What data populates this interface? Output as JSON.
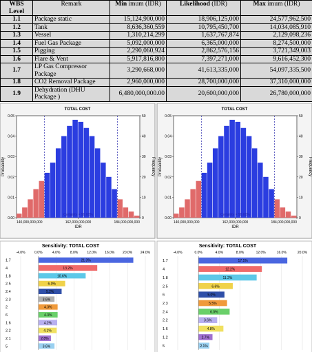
{
  "table": {
    "header": [
      {
        "bold": "WBS Level",
        "text": ""
      },
      {
        "bold": "",
        "text": "Remark"
      },
      {
        "bold": "Min",
        "text": "imum (IDR)"
      },
      {
        "bold": "Likelihood",
        "text": "(IDR)"
      },
      {
        "bold": "Max",
        "text": "imum (IDR)"
      }
    ],
    "rows": [
      [
        "1.1",
        "Package static",
        "15,124,900,000",
        "18,906,125,000",
        "24,577,962,500"
      ],
      [
        "1.2",
        "Tank",
        "8,636,360,559",
        "10,795,450,700",
        "14,034,085,910"
      ],
      [
        "1.3",
        "Vessel",
        "1,310,214,299",
        "1,637,767,874",
        "2,129,098,236"
      ],
      [
        "1.4",
        "Fuel Gas Package",
        "5,092,000,000",
        "6,365,000,000",
        "8,274,500,000"
      ],
      [
        "1.5",
        "Pigging",
        "2,290,060,924",
        "2,862,576,156",
        "3,721,349,003"
      ],
      [
        "1.6",
        "Flare & Vent",
        "5,917,816,800",
        "7,397,271,000",
        "9,616,452,300"
      ],
      [
        "1.7",
        "LP Gas Compressor Package",
        "3,290,668,000",
        "41,613,335,000",
        "54,097,335,500"
      ],
      [
        "1.8",
        "CO2 Removal Package",
        "2,960,000,000",
        "28,700,000,000",
        "37,310,000,000"
      ],
      [
        "1.9",
        "Dehydration (DHU Package )",
        "6,480,000,000.00",
        "20,600,000,000",
        "26,780,000,000"
      ]
    ]
  },
  "chart_data": [
    {
      "type": "histogram",
      "title": "TOTAL COST",
      "x_label": "IDR",
      "y_label": "Probability",
      "y2_label": "Frequency",
      "bins": [
        140000000000,
        142000000000,
        144000000000,
        146000000000,
        148000000000,
        150000000000,
        152000000000,
        154000000000,
        156000000000,
        158000000000,
        160000000000,
        162000000000,
        164000000000,
        166000000000,
        168000000000,
        170000000000,
        172000000000,
        174000000000,
        176000000000,
        178000000000,
        180000000000,
        182000000000,
        184000000000
      ],
      "values": [
        2,
        5,
        9,
        14,
        18,
        22,
        27,
        34,
        40,
        45,
        48,
        47,
        44,
        40,
        34,
        27,
        20,
        14,
        9,
        5,
        3,
        1
      ],
      "axis": "y2",
      "color": "#2b3de0",
      "tail_color": "#e06a6a",
      "certainty_range": [
        150000000000,
        176000000000
      ],
      "xlim": [
        140000000000,
        184000000000
      ],
      "xticks": [
        {
          "value": 140000000000,
          "label": "140,000,000,000"
        },
        {
          "value": 162000000000,
          "label": "162,000,000,000"
        },
        {
          "value": 184000000000,
          "label": "184,000,000,000"
        }
      ],
      "ylim": [
        0,
        0.05
      ],
      "yticks": [
        {
          "value": 0,
          "label": "0.00"
        },
        0.01,
        0.02,
        0.03,
        0.04,
        0.05
      ],
      "y2lim": [
        0,
        50
      ],
      "y2ticks": [
        0,
        10,
        20,
        30,
        40,
        50
      ],
      "annotation": "Certainty = 90.00%"
    },
    {
      "type": "histogram",
      "title": "TOTAL COST",
      "x_label": "IDR",
      "y_label": "Probability",
      "y2_label": "Frequency",
      "bins": [
        140000000000,
        142000000000,
        144000000000,
        146000000000,
        148000000000,
        150000000000,
        152000000000,
        154000000000,
        156000000000,
        158000000000,
        160000000000,
        162000000000,
        164000000000,
        166000000000,
        168000000000,
        170000000000,
        172000000000,
        174000000000,
        176000000000,
        178000000000,
        180000000000,
        182000000000,
        184000000000
      ],
      "values": [
        2,
        5,
        9,
        14,
        18,
        22,
        27,
        34,
        40,
        45,
        48,
        47,
        44,
        40,
        34,
        27,
        20,
        14,
        9,
        5,
        3,
        1
      ],
      "axis": "y2",
      "color": "#2b3de0",
      "tail_color": "#e06a6a",
      "certainty_range": [
        150000000000,
        176000000000
      ],
      "xlim": [
        140000000000,
        184000000000
      ],
      "xticks": [
        {
          "value": 140000000000,
          "label": "140,000,000,000"
        },
        {
          "value": 162000000000,
          "label": "162,000,000,000"
        },
        {
          "value": 184000000000,
          "label": "184,000,000,000"
        }
      ],
      "ylim": [
        0,
        0.05
      ],
      "yticks": [
        {
          "value": 0,
          "label": "0.00"
        },
        0.01,
        0.02,
        0.03,
        0.04,
        0.05
      ],
      "y2lim": [
        0,
        50
      ],
      "y2ticks": [
        0,
        10,
        20,
        30,
        40,
        50
      ],
      "annotation": "Certainty = 90.00%"
    },
    {
      "type": "tornado",
      "title": "Sensitivity: TOTAL COST",
      "categories": [
        "1.7",
        "4",
        "1.8",
        "2.5",
        "2.4",
        "2.3",
        "2",
        "6",
        "1.6",
        "2.2",
        "2.1",
        "5"
      ],
      "values": [
        21.3,
        13.2,
        10.6,
        6.0,
        5.2,
        3.6,
        4.3,
        4.3,
        4.2,
        4.1,
        2.8,
        3.6
      ],
      "value_labels": [
        "21.3%",
        "13.2%",
        "10.6%",
        "6.0%",
        "5.2%",
        "3.6%",
        "4.3%",
        "4.3%",
        "4.2%",
        "4.1%",
        "2.8%",
        "3.6%"
      ],
      "colors": [
        "#4a66e0",
        "#f06a6a",
        "#5cc8e8",
        "#f0d24a",
        "#2f4fa8",
        "#b0b0b0",
        "#f09a3a",
        "#6ad06a",
        "#b8b0f0",
        "#f0e060",
        "#a070d0",
        "#9ad0f0"
      ],
      "xlim": [
        -4,
        24
      ],
      "xticks": [
        {
          "value": -4,
          "label": "-4.0%"
        },
        {
          "value": 0,
          "label": "0.0%"
        },
        {
          "value": 4,
          "label": "4.0%"
        },
        {
          "value": 8,
          "label": "8.0%"
        },
        {
          "value": 12,
          "label": "12.0%"
        },
        {
          "value": 16,
          "label": "16.0%"
        },
        {
          "value": 20,
          "label": "20.0%"
        },
        {
          "value": 24,
          "label": "24.0%"
        }
      ]
    },
    {
      "type": "tornado",
      "title": "Sensitivity: TOTAL COST",
      "categories": [
        "1.7",
        "4",
        "1.8",
        "2.5",
        "6",
        "2.3",
        "2.4",
        "2.2",
        "1.6",
        "1.2",
        "5"
      ],
      "values": [
        17.1,
        12.2,
        11.2,
        6.6,
        5.0,
        5.5,
        6.0,
        3.6,
        4.8,
        2.7,
        2.1
      ],
      "value_labels": [
        "17.1%",
        "12.2%",
        "11.2%",
        "6.6%",
        "5.0%",
        "5.5%",
        "6.0%",
        "3.6%",
        "4.8%",
        "2.7%",
        "2.1%"
      ],
      "colors": [
        "#4a66e0",
        "#f06a6a",
        "#5cc8e8",
        "#f0d24a",
        "#2f4fa8",
        "#f09a3a",
        "#6ad06a",
        "#b8b0f0",
        "#f0e060",
        "#a070d0",
        "#9ad0f0"
      ],
      "xlim": [
        -4,
        20
      ],
      "xticks": [
        {
          "value": -4,
          "label": "-4.0%"
        },
        {
          "value": 0,
          "label": "0.0%"
        },
        {
          "value": 4,
          "label": "4.0%"
        },
        {
          "value": 8,
          "label": "8.0%"
        },
        {
          "value": 12,
          "label": "12.0%"
        },
        {
          "value": 16,
          "label": "16.0%"
        },
        {
          "value": 20,
          "label": "20.0%"
        }
      ]
    }
  ]
}
